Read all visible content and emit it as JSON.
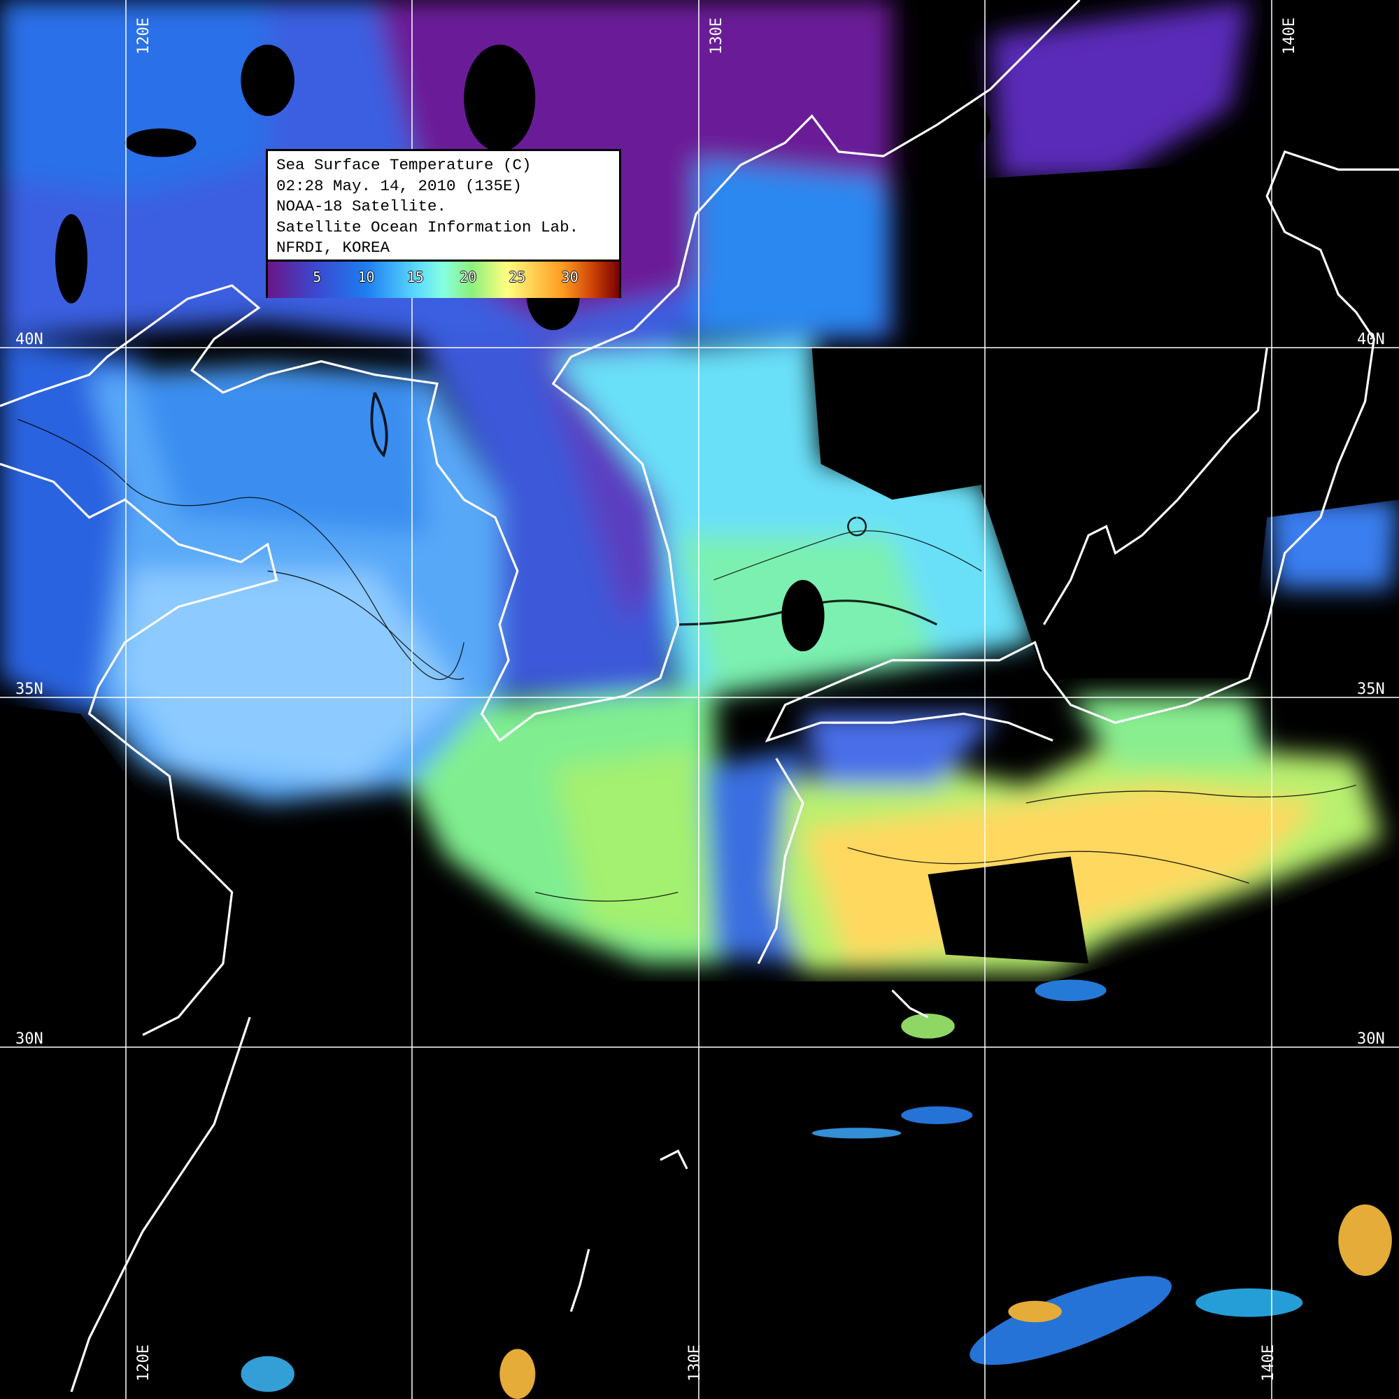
{
  "legend": {
    "lines": [
      "Sea Surface Temperature (C)",
      "02:28 May. 14, 2010 (135E)",
      "NOAA-18 Satellite.",
      "Satellite Ocean Information Lab.",
      "NFRDI, KOREA"
    ],
    "colorbar_ticks": [
      "5",
      "10",
      "15",
      "20",
      "25",
      "30"
    ],
    "colorbar_colors": [
      "#6a1688",
      "#1e7df0",
      "#86ffe0",
      "#8cf07c",
      "#ffff80",
      "#ff9a20",
      "#7a0000"
    ]
  },
  "grid": {
    "longitudes_top": [
      "120E",
      "130E",
      "140E"
    ],
    "longitudes_bottom": [
      "120E",
      "130E",
      "140E"
    ],
    "latitudes_left": [
      "40N",
      "35N",
      "30N"
    ],
    "latitudes_right": [
      "40N",
      "35N",
      "30N"
    ]
  },
  "colors": {
    "no_data": "#000000",
    "coastline": "#ffffff",
    "gridline": "#ffffff"
  }
}
